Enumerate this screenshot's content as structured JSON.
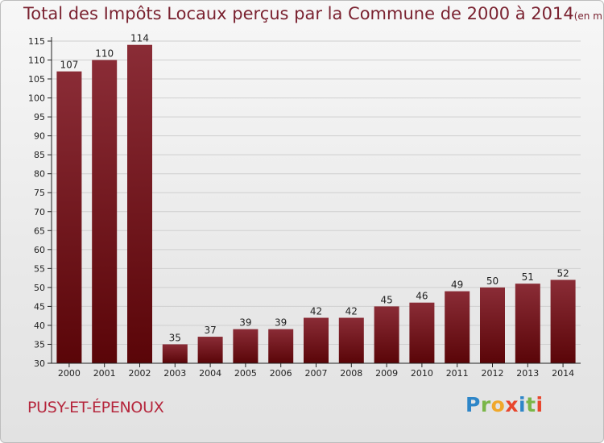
{
  "header": {
    "title": "Total des Impôts Locaux perçus par la Commune de 2000 à 2014",
    "unit": "(en milliers d'€)"
  },
  "footer": {
    "commune": "PUSY-ET-ÉPENOUX",
    "logo_letters": [
      "P",
      "r",
      "o",
      "x",
      "i",
      "t",
      "i"
    ],
    "logo_colors": [
      "#2e86c8",
      "#7ab648",
      "#f0a82a",
      "#e8452c",
      "#2e86c8",
      "#7ab648",
      "#e8452c"
    ]
  },
  "colors": {
    "bar_top": "#8a2c36",
    "bar_bottom": "#5a0508",
    "grid": "#cfcfcf",
    "axis": "#222222",
    "text": "#222222"
  },
  "chart_data": {
    "type": "bar",
    "title": "Total des Impôts Locaux perçus par la Commune de 2000 à 2014",
    "subtitle": "(en milliers d'€)",
    "xlabel": "",
    "ylabel": "",
    "categories": [
      "2000",
      "2001",
      "2002",
      "2003",
      "2004",
      "2005",
      "2006",
      "2007",
      "2008",
      "2009",
      "2010",
      "2011",
      "2012",
      "2013",
      "2014"
    ],
    "values": [
      107,
      110,
      114,
      35,
      37,
      39,
      39,
      42,
      42,
      45,
      46,
      49,
      50,
      51,
      52
    ],
    "ylim": [
      30,
      115
    ],
    "yticks": [
      30,
      35,
      40,
      45,
      50,
      55,
      60,
      65,
      70,
      75,
      80,
      85,
      90,
      95,
      100,
      105,
      110,
      115
    ],
    "grid": true,
    "legend": "none"
  }
}
